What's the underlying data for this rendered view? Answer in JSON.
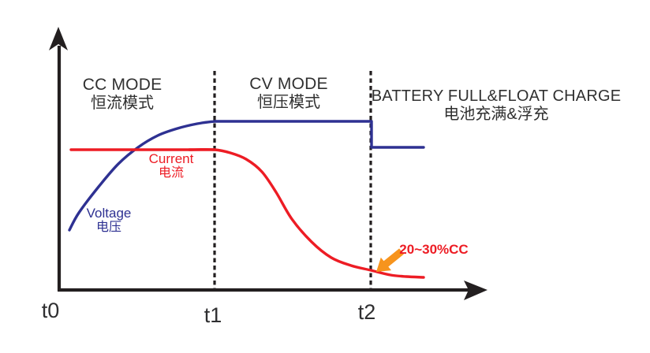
{
  "page": {
    "background": "#ffffff"
  },
  "chart_data": {
    "type": "line",
    "title": "",
    "grid": false,
    "legend": false,
    "colors": {
      "voltage": "#2e3192",
      "current": "#ed1c24",
      "axis": "#231f20",
      "text": "#303030",
      "callout_text": "#ed1c24",
      "callout_arrow": "#f7941d"
    },
    "icons": {
      "y-axis-arrow-icon": "upward arrowhead on vertical axis",
      "x-axis-arrow-icon": "rightward arrowhead on horizontal axis",
      "callout-arrow-icon": "thick orange arrow pointing down-left at the current curve tail"
    },
    "x_ticks": [
      {
        "label": "t0",
        "line_x": 75,
        "label_x": 64,
        "label_y": 380,
        "dashed": false
      },
      {
        "label": "t1",
        "line_x": 272,
        "label_x": 270,
        "label_y": 386,
        "dashed": true
      },
      {
        "label": "t2",
        "line_x": 470,
        "label_x": 465,
        "label_y": 382,
        "dashed": true
      }
    ],
    "phases": [
      {
        "label_en": "CC MODE",
        "label_cn": "恒流模式"
      },
      {
        "label_en": "CV MODE",
        "label_cn": "恒压模式"
      },
      {
        "label_en": "BATTERY FULL&FLOAT CHARGE",
        "label_cn": "电池充满&浮充"
      }
    ],
    "series": [
      {
        "key": "voltage",
        "name": "Voltage",
        "label_cn": "电压",
        "color": "#2e3192",
        "segments": [
          {
            "smooth": true,
            "points": [
              [
                88,
                292
              ],
              [
                100,
                270
              ],
              [
                125,
                237
              ],
              [
                150,
                208
              ],
              [
                175,
                187
              ],
              [
                200,
                172
              ],
              [
                225,
                163
              ],
              [
                250,
                157
              ],
              [
                272,
                154
              ]
            ]
          },
          {
            "smooth": false,
            "points": [
              [
                272,
                154
              ],
              [
                471,
                154
              ],
              [
                471,
                187
              ],
              [
                537,
                187
              ]
            ]
          }
        ]
      },
      {
        "key": "current",
        "name": "Current",
        "label_cn": "电流",
        "color": "#ed1c24",
        "segments": [
          {
            "smooth": false,
            "points": [
              [
                90,
                190
              ],
              [
                272,
                190
              ]
            ]
          },
          {
            "smooth": true,
            "points": [
              [
                240,
                190
              ],
              [
                272,
                190
              ],
              [
                292,
                194
              ],
              [
                312,
                202
              ],
              [
                332,
                218
              ],
              [
                350,
                244
              ],
              [
                370,
                278
              ],
              [
                395,
                307
              ],
              [
                420,
                327
              ],
              [
                445,
                337
              ],
              [
                470,
                343
              ],
              [
                495,
                349
              ],
              [
                515,
                351
              ],
              [
                537,
                352
              ]
            ]
          }
        ]
      }
    ],
    "annotation": {
      "text": "20~30%CC",
      "color": "#ed1c24",
      "arrow_color": "#f7941d"
    }
  }
}
